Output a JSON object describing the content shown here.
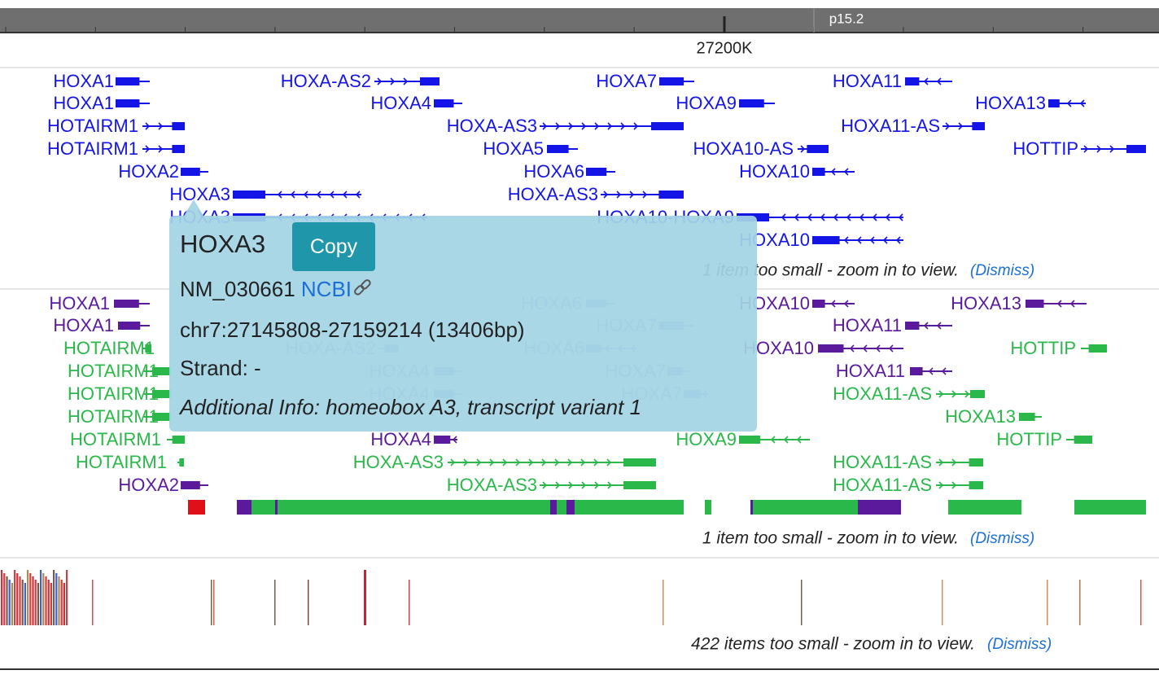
{
  "ruler": {
    "band": "p15.2",
    "position": "27200K"
  },
  "track1": {
    "genes": [
      "HOXA1",
      "HOXA1",
      "HOTAIRM1",
      "HOTAIRM1",
      "HOXA2",
      "HOXA3",
      "HOXA3",
      "HOXA-AS2",
      "HOXA4",
      "HOXA-AS3",
      "HOXA5",
      "HOXA6",
      "HOXA-AS3",
      "HOXA7",
      "HOXA9",
      "HOXA10-AS",
      "HOXA10",
      "HOXA10-HOXA9",
      "HOXA10",
      "HOXA11",
      "HOXA11-AS",
      "HOXA13",
      "HOTTIP"
    ],
    "note": "1 item too small - zoom in to view.",
    "dismiss": "(Dismiss)"
  },
  "track2": {
    "genes": [
      "HOXA1",
      "HOXA1",
      "HOTAIRM1",
      "HOTAIRM1",
      "HOTAIRM1",
      "HOTAIRM1",
      "HOTAIRM1",
      "HOTAIRM1",
      "HOXA2",
      "HOXA-AS2",
      "HOXA4",
      "HOXA4",
      "HOXA4",
      "HOXA-AS3",
      "HOXA-AS3",
      "HOXA6",
      "HOXA7",
      "HOXA6",
      "HOXA7",
      "HOXA7",
      "HOXA10",
      "HOXA10",
      "HOXA9",
      "HOXA11",
      "HOXA11",
      "HOXA11-AS",
      "HOXA11-AS",
      "HOXA11-AS",
      "HOXA13",
      "HOXA13",
      "HOTTIP",
      "HOTTIP"
    ],
    "note": "1 item too small - zoom in to view.",
    "dismiss": "(Dismiss)"
  },
  "track3": {
    "note": "422 items too small - zoom in to view.",
    "dismiss": "(Dismiss)"
  },
  "popup": {
    "title": "HOXA3",
    "copy": "Copy",
    "accession": "NM_030661",
    "link": "NCBI",
    "location": "chr7:27145808-27159214 (13406bp)",
    "strand": "Strand: -",
    "info": "Additional Info: homeobox A3, transcript variant 1"
  }
}
